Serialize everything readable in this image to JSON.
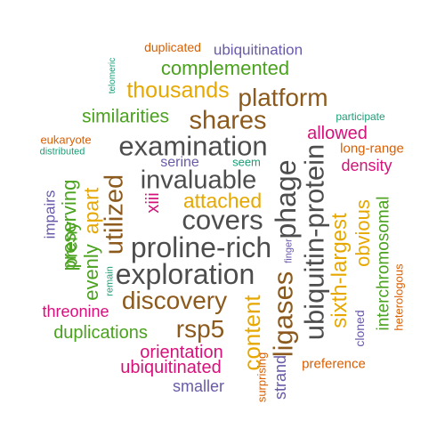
{
  "word_cloud": {
    "colors": {
      "dark_gray": "#4d4d4d",
      "brown": "#8b5a1c",
      "gold": "#e6a800",
      "green": "#4aa21e",
      "magenta": "#d6117a",
      "purple": "#6a5aa8",
      "orange": "#d95f02",
      "teal": "#1b9e77"
    },
    "words": [
      {
        "text": "duplicated",
        "color": "#d95f02"
      },
      {
        "text": "ubiquitination",
        "color": "#6a5aa8"
      },
      {
        "text": "telomeric",
        "color": "#1b9e77"
      },
      {
        "text": "complemented",
        "color": "#4aa21e"
      },
      {
        "text": "thousands",
        "color": "#e6a800"
      },
      {
        "text": "platform",
        "color": "#8b5a1c"
      },
      {
        "text": "similarities",
        "color": "#4aa21e"
      },
      {
        "text": "shares",
        "color": "#8b5a1c"
      },
      {
        "text": "participate",
        "color": "#1b9e77"
      },
      {
        "text": "allowed",
        "color": "#d6117a"
      },
      {
        "text": "eukaryote",
        "color": "#d95f02"
      },
      {
        "text": "examination",
        "color": "#4d4d4d"
      },
      {
        "text": "long-range",
        "color": "#d95f02"
      },
      {
        "text": "distributed",
        "color": "#1b9e77"
      },
      {
        "text": "serine",
        "color": "#6a5aa8"
      },
      {
        "text": "seem",
        "color": "#1b9e77"
      },
      {
        "text": "density",
        "color": "#d6117a"
      },
      {
        "text": "invaluable",
        "color": "#4d4d4d"
      },
      {
        "text": "phage",
        "color": "#4d4d4d"
      },
      {
        "text": "ubiquitin-protein",
        "color": "#4d4d4d"
      },
      {
        "text": "xiii",
        "color": "#d6117a"
      },
      {
        "text": "attached",
        "color": "#e6a800"
      },
      {
        "text": "impairs",
        "color": "#6a5aa8"
      },
      {
        "text": "preserving",
        "color": "#4aa21e"
      },
      {
        "text": "apart",
        "color": "#e6a800"
      },
      {
        "text": "utilized",
        "color": "#8b5a1c"
      },
      {
        "text": "covers",
        "color": "#4d4d4d"
      },
      {
        "text": "obvious",
        "color": "#e6a800"
      },
      {
        "text": "interchromosomal",
        "color": "#4aa21e"
      },
      {
        "text": "preny",
        "color": "#4aa21e"
      },
      {
        "text": "sixth-largest",
        "color": "#e6a800"
      },
      {
        "text": "proline-rich",
        "color": "#4d4d4d"
      },
      {
        "text": "finger",
        "color": "#6a5aa8"
      },
      {
        "text": "heterologous",
        "color": "#d95f02"
      },
      {
        "text": "evenly",
        "color": "#4aa21e"
      },
      {
        "text": "remain",
        "color": "#1b9e77"
      },
      {
        "text": "exploration",
        "color": "#4d4d4d"
      },
      {
        "text": "ligases",
        "color": "#8b5a1c"
      },
      {
        "text": "discovery",
        "color": "#8b5a1c"
      },
      {
        "text": "threonine",
        "color": "#d6117a"
      },
      {
        "text": "content",
        "color": "#e6a800"
      },
      {
        "text": "cloned",
        "color": "#6a5aa8"
      },
      {
        "text": "rsp5",
        "color": "#8b5a1c"
      },
      {
        "text": "duplications",
        "color": "#4aa21e"
      },
      {
        "text": "orientation",
        "color": "#d6117a"
      },
      {
        "text": "surprising",
        "color": "#d95f02"
      },
      {
        "text": "strand",
        "color": "#6a5aa8"
      },
      {
        "text": "preference",
        "color": "#d95f02"
      },
      {
        "text": "ubiquitinated",
        "color": "#d6117a"
      },
      {
        "text": "smaller",
        "color": "#6a5aa8"
      }
    ]
  }
}
